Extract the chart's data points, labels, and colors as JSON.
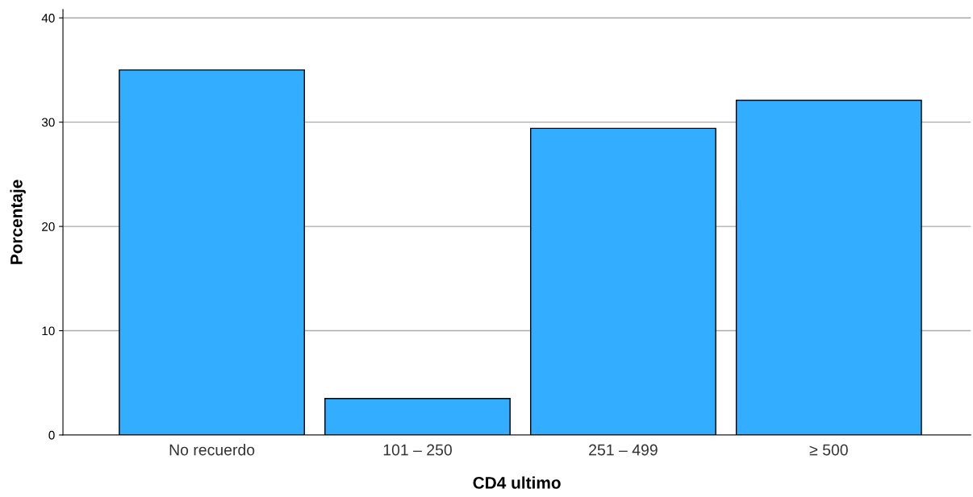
{
  "chart_data": {
    "type": "bar",
    "xlabel": "CD4 ultimo",
    "ylabel": "Porcentaje",
    "categories": [
      "No recuerdo",
      "101 – 250",
      "251 – 499",
      "≥ 500"
    ],
    "values": [
      35.0,
      3.5,
      29.4,
      32.1
    ],
    "color": "#33adff",
    "ylim": [
      0,
      40.8
    ],
    "yticks": [
      0,
      10,
      20,
      30,
      40
    ],
    "grid": "y",
    "legend": false
  }
}
